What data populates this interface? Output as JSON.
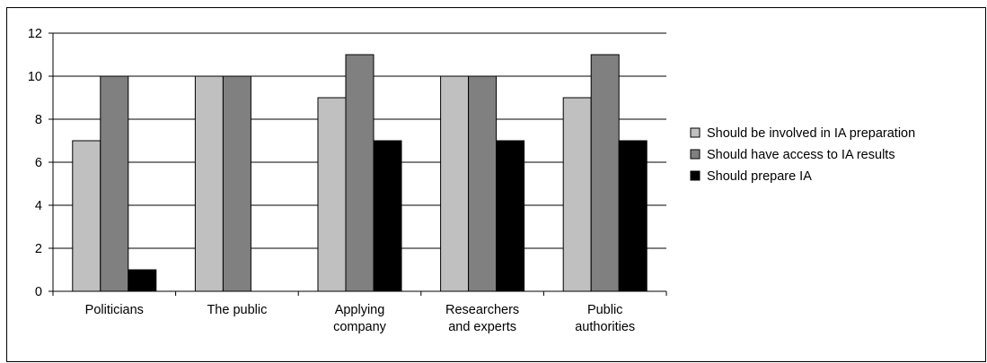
{
  "chart_data": {
    "type": "bar",
    "categories": [
      [
        "Politicians"
      ],
      [
        "The public"
      ],
      [
        "Applying",
        "company"
      ],
      [
        "Researchers",
        "and experts"
      ],
      [
        "Public",
        "authorities"
      ]
    ],
    "series": [
      {
        "name": "Should be involved in IA preparation",
        "color": "#c0c0c0",
        "values": [
          7,
          10,
          9,
          10,
          9
        ]
      },
      {
        "name": "Should have access to IA results",
        "color": "#808080",
        "values": [
          10,
          10,
          11,
          10,
          11
        ]
      },
      {
        "name": "Should prepare IA",
        "color": "#000000",
        "values": [
          1,
          0,
          7,
          7,
          7
        ]
      }
    ],
    "ylim": [
      0,
      12
    ],
    "yticks": [
      "0",
      "2",
      "4",
      "6",
      "8",
      "10",
      "12"
    ],
    "grid": true,
    "legend": "right",
    "title": "",
    "xlabel": "",
    "ylabel": ""
  }
}
